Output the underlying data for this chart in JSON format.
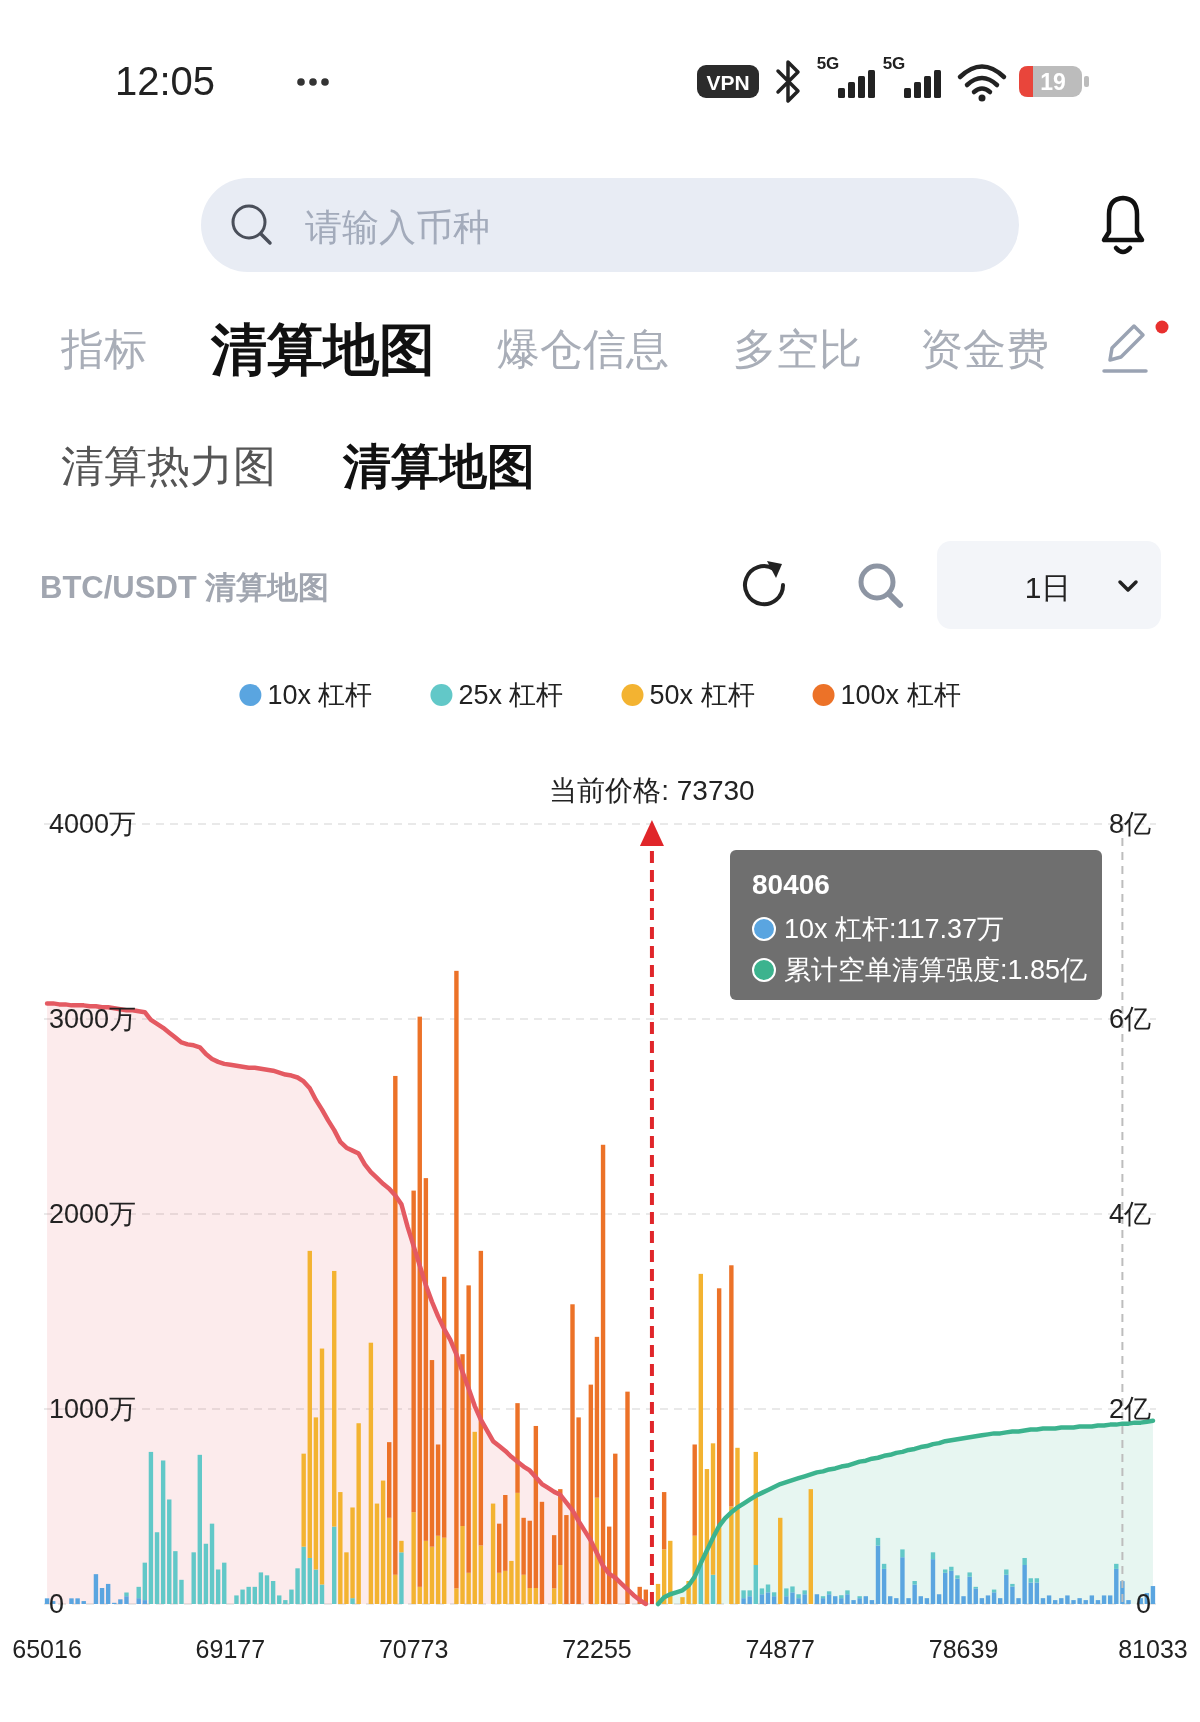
{
  "chart_data": {
    "type": "bar",
    "title": "BTC/USDT 清算地图",
    "categories": [
      "65016",
      null,
      null,
      null,
      null,
      null,
      null,
      null,
      null,
      null,
      null,
      null,
      null,
      null,
      null,
      null,
      null,
      null,
      null,
      null,
      null,
      null,
      null,
      null,
      null,
      null,
      null,
      null,
      null,
      null,
      "69177",
      null,
      null,
      null,
      null,
      null,
      null,
      null,
      null,
      null,
      null,
      null,
      null,
      null,
      null,
      null,
      null,
      null,
      null,
      null,
      null,
      null,
      null,
      null,
      null,
      null,
      null,
      null,
      null,
      null,
      "70773",
      null,
      null,
      null,
      null,
      null,
      null,
      null,
      null,
      null,
      null,
      null,
      null,
      null,
      null,
      null,
      null,
      null,
      null,
      null,
      null,
      null,
      null,
      null,
      null,
      null,
      null,
      null,
      null,
      null,
      "72255",
      null,
      null,
      null,
      null,
      null,
      null,
      null,
      null,
      null,
      null,
      null,
      null,
      null,
      null,
      null,
      null,
      null,
      null,
      null,
      null,
      null,
      null,
      null,
      null,
      null,
      null,
      null,
      null,
      null,
      "74877",
      null,
      null,
      null,
      null,
      null,
      null,
      null,
      null,
      null,
      null,
      null,
      null,
      null,
      null,
      null,
      null,
      null,
      null,
      null,
      null,
      null,
      null,
      null,
      null,
      null,
      null,
      null,
      null,
      null,
      "78639",
      null,
      null,
      null,
      null,
      null,
      null,
      null,
      null,
      null,
      null,
      null,
      null,
      null,
      null,
      null,
      null,
      null,
      null,
      null,
      null,
      null,
      null,
      null,
      null,
      null,
      null,
      null,
      null,
      null,
      null,
      "81033"
    ],
    "series": [
      {
        "name": "10x 杠杆",
        "color": "#5aa5e0",
        "values": [
          29,
          15,
          0,
          0,
          29,
          29,
          15,
          0,
          153,
          82,
          103,
          6,
          24,
          40,
          0,
          30,
          20,
          0,
          0,
          0,
          0,
          0,
          0,
          0,
          0,
          0,
          0,
          0,
          0,
          0,
          0,
          0,
          0,
          0,
          0,
          0,
          0,
          0,
          0,
          0,
          0,
          0,
          0,
          0,
          0,
          0,
          0,
          0,
          0,
          0,
          0,
          0,
          0,
          0,
          0,
          0,
          0,
          0,
          0,
          0,
          0,
          0,
          0,
          0,
          0,
          0,
          0,
          0,
          0,
          0,
          0,
          0,
          0,
          0,
          0,
          0,
          0,
          0,
          0,
          0,
          0,
          0,
          0,
          0,
          0,
          0,
          0,
          0,
          0,
          0,
          0,
          0,
          0,
          0,
          0,
          0,
          0,
          0,
          0,
          0,
          0,
          0,
          0,
          0,
          0,
          0,
          0,
          0,
          0,
          0,
          0,
          0,
          0,
          0,
          30,
          40,
          0,
          50,
          60,
          40,
          0,
          40,
          60,
          30,
          50,
          0,
          50,
          30,
          50,
          40,
          30,
          50,
          20,
          30,
          40,
          20,
          300,
          180,
          40,
          30,
          240,
          30,
          100,
          40,
          30,
          230,
          50,
          160,
          170,
          130,
          40,
          140,
          80,
          30,
          44,
          60,
          30,
          150,
          90,
          30,
          200,
          110,
          110,
          30,
          44,
          20,
          30,
          44,
          20,
          30,
          20,
          44,
          20,
          44,
          44,
          180,
          117.37,
          20,
          0,
          30,
          56,
          92
        ]
      },
      {
        "name": "25x 杠杆",
        "color": "#62c8c8",
        "values": [
          0,
          0,
          0,
          0,
          0,
          0,
          0,
          0,
          0,
          0,
          0,
          0,
          0,
          19,
          0,
          58,
          192,
          780,
          368,
          736,
          536,
          271,
          124,
          0,
          265,
          765,
          309,
          412,
          177,
          212,
          0,
          44,
          74,
          88,
          88,
          162,
          147,
          118,
          44,
          20,
          74,
          183,
          294,
          236,
          177,
          100,
          0,
          397,
          0,
          0,
          30,
          0,
          0,
          0,
          0,
          0,
          0,
          0,
          265,
          0,
          0,
          0,
          0,
          0,
          0,
          0,
          0,
          0,
          0,
          0,
          0,
          0,
          0,
          0,
          0,
          0,
          0,
          0,
          0,
          0,
          0,
          0,
          0,
          0,
          0,
          0,
          0,
          0,
          0,
          0,
          0,
          0,
          0,
          0,
          0,
          0,
          0,
          0,
          0,
          0,
          0,
          0,
          0,
          0,
          0,
          0,
          0,
          200,
          0,
          150,
          0,
          0,
          0,
          0,
          40,
          30,
          200,
          30,
          40,
          20,
          0,
          40,
          30,
          20,
          20,
          0,
          0,
          10,
          15,
          0,
          15,
          20,
          0,
          10,
          0,
          0,
          39,
          26,
          0,
          0,
          40,
          0,
          18,
          0,
          0,
          35,
          0,
          17,
          21,
          17,
          0,
          22,
          8,
          0,
          0,
          14,
          0,
          27,
          13,
          0,
          36,
          22,
          22,
          0,
          0,
          0,
          0,
          0,
          0,
          0,
          0,
          0,
          0,
          0,
          0,
          26,
          0,
          0,
          0,
          0,
          0,
          0
        ]
      },
      {
        "name": "50x 杠杆",
        "color": "#f3b331",
        "values": [
          0,
          0,
          0,
          0,
          0,
          0,
          0,
          0,
          0,
          0,
          0,
          0,
          0,
          0,
          0,
          0,
          0,
          0,
          0,
          0,
          0,
          0,
          0,
          0,
          0,
          0,
          0,
          0,
          0,
          0,
          0,
          0,
          0,
          0,
          0,
          0,
          0,
          0,
          0,
          0,
          0,
          0,
          477,
          1575,
          780,
          1210,
          0,
          1311,
          574,
          265,
          465,
          927,
          0,
          1340,
          515,
          633,
          442,
          150,
          59,
          0,
          471,
          88,
          324,
          294,
          350,
          340,
          0,
          80,
          400,
          160,
          883,
          300,
          0,
          515,
          160,
          170,
          221,
          570,
          150,
          82,
          82,
          0,
          0,
          80,
          200,
          0,
          0,
          0,
          0,
          0,
          545,
          0,
          0,
          0,
          0,
          0,
          0,
          0,
          0,
          0,
          103,
          280,
          324,
          0,
          35,
          118,
          350,
          1493,
          692,
          674,
          400,
          0,
          500,
          801,
          0,
          0,
          580,
          0,
          0,
          0,
          442,
          0,
          0,
          0,
          0,
          589,
          0,
          0,
          0,
          0,
          0,
          0,
          0,
          0,
          0,
          0,
          0,
          0,
          0,
          0,
          0,
          0,
          0,
          0,
          0,
          0,
          0,
          0,
          0,
          0,
          0,
          0,
          0,
          0,
          0,
          0,
          0,
          0,
          0,
          0,
          0,
          0,
          0,
          0,
          0,
          0,
          0,
          0,
          0,
          0,
          0,
          0,
          0,
          0,
          0,
          0,
          0,
          0,
          0,
          0,
          0,
          0
        ]
      },
      {
        "name": "100x 杠杆",
        "color": "#ec7228",
        "values": [
          0,
          0,
          0,
          0,
          0,
          0,
          0,
          0,
          0,
          0,
          0,
          0,
          0,
          0,
          0,
          0,
          0,
          0,
          0,
          0,
          0,
          0,
          0,
          0,
          0,
          0,
          0,
          0,
          0,
          0,
          0,
          0,
          0,
          0,
          0,
          0,
          0,
          0,
          0,
          0,
          0,
          0,
          0,
          0,
          0,
          0,
          0,
          0,
          0,
          0,
          0,
          0,
          0,
          0,
          0,
          0,
          388,
          2558,
          0,
          0,
          1649,
          2924,
          1860,
          957,
          468,
          1338,
          0,
          3167,
          881,
          1474,
          0,
          1511,
          0,
          0,
          252,
          389,
          0,
          460,
          292,
          345,
          831,
          524,
          0,
          273,
          389,
          456,
          1537,
          957,
          0,
          1125,
          825,
          2355,
          397,
          771,
          0,
          1089,
          0,
          88,
          74,
          0,
          0,
          294,
          0,
          0,
          0,
          0,
          468,
          0,
          0,
          0,
          1219,
          0,
          1237,
          0,
          0,
          0,
          0,
          0,
          0,
          0,
          0,
          0,
          0,
          0,
          0,
          0,
          0,
          0,
          0,
          0,
          0,
          0,
          0,
          0,
          0,
          0,
          0,
          0,
          0,
          0,
          0,
          0,
          0,
          0,
          0,
          0,
          0,
          0,
          0,
          0,
          0,
          0,
          0,
          0,
          0,
          0,
          0,
          0,
          0,
          0,
          0,
          0,
          0,
          0,
          0,
          0,
          0,
          0,
          0,
          0,
          0,
          0,
          0,
          0,
          0,
          0,
          0,
          0,
          0,
          0,
          0,
          0
        ]
      },
      {
        "type": "area",
        "axis": "y2",
        "color": "#e45a62",
        "values": [
          6.16,
          6.16,
          6.15,
          6.15,
          6.14,
          6.14,
          6.14,
          6.13,
          6.13,
          6.12,
          6.12,
          6.11,
          6.1,
          6.09,
          6.09,
          6.08,
          6.07,
          5.99,
          5.95,
          5.91,
          5.86,
          5.81,
          5.76,
          5.74,
          5.73,
          5.71,
          5.64,
          5.59,
          5.56,
          5.54,
          5.53,
          5.52,
          5.51,
          5.5,
          5.5,
          5.49,
          5.48,
          5.47,
          5.45,
          5.43,
          5.42,
          5.4,
          5.36,
          5.29,
          5.17,
          5.07,
          4.96,
          4.86,
          4.74,
          4.68,
          4.65,
          4.62,
          4.51,
          4.43,
          4.37,
          4.31,
          4.26,
          4.19,
          4.1,
          3.87,
          3.67,
          3.47,
          3.27,
          3.1,
          2.95,
          2.82,
          2.71,
          2.56,
          2.38,
          2.21,
          2.03,
          1.89,
          1.78,
          1.67,
          1.62,
          1.57,
          1.51,
          1.46,
          1.41,
          1.37,
          1.3,
          1.23,
          1.19,
          1.15,
          1.12,
          1.04,
          0.96,
          0.85,
          0.75,
          0.65,
          0.52,
          0.39,
          0.31,
          0.27,
          0.21,
          0.15,
          0.09,
          0.04,
          0,
          null,
          null,
          null,
          null,
          null,
          null,
          null,
          null,
          null,
          null,
          null,
          null,
          null,
          null,
          null,
          null,
          null,
          null,
          null,
          null,
          null,
          null,
          null,
          null,
          null,
          null,
          null,
          null,
          null,
          null,
          null,
          null,
          null,
          null,
          null,
          null,
          null,
          null,
          null,
          null,
          null,
          null,
          null,
          null,
          null,
          null,
          null,
          null,
          null,
          null,
          null,
          null,
          null,
          null,
          null,
          null,
          null,
          null,
          null,
          null,
          null,
          null,
          null,
          null,
          null,
          null,
          null,
          null,
          null,
          null,
          null,
          null,
          null,
          null,
          null,
          null,
          null,
          null,
          null,
          null,
          null,
          null,
          null
        ]
      },
      {
        "type": "area",
        "axis": "y2",
        "color": "#3cb38e",
        "values": [
          null,
          null,
          null,
          null,
          null,
          null,
          null,
          null,
          null,
          null,
          null,
          null,
          null,
          null,
          null,
          null,
          null,
          null,
          null,
          null,
          null,
          null,
          null,
          null,
          null,
          null,
          null,
          null,
          null,
          null,
          null,
          null,
          null,
          null,
          null,
          null,
          null,
          null,
          null,
          null,
          null,
          null,
          null,
          null,
          null,
          null,
          null,
          null,
          null,
          null,
          null,
          null,
          null,
          null,
          null,
          null,
          null,
          null,
          null,
          null,
          null,
          null,
          null,
          null,
          null,
          null,
          null,
          null,
          null,
          null,
          null,
          null,
          null,
          null,
          null,
          null,
          null,
          null,
          null,
          null,
          null,
          null,
          null,
          null,
          null,
          null,
          null,
          null,
          null,
          null,
          null,
          null,
          null,
          null,
          null,
          null,
          null,
          null,
          null,
          null,
          0,
          0.07,
          0.1,
          0.12,
          0.14,
          0.19,
          0.28,
          0.42,
          0.55,
          0.68,
          0.8,
          0.88,
          0.94,
          0.99,
          1.03,
          1.07,
          1.11,
          1.14,
          1.17,
          1.2,
          1.23,
          1.25,
          1.27,
          1.29,
          1.31,
          1.33,
          1.35,
          1.36,
          1.38,
          1.39,
          1.41,
          1.42,
          1.44,
          1.46,
          1.47,
          1.49,
          1.5,
          1.52,
          1.53,
          1.55,
          1.56,
          1.58,
          1.59,
          1.61,
          1.62,
          1.64,
          1.65,
          1.67,
          1.68,
          1.69,
          1.7,
          1.71,
          1.72,
          1.73,
          1.74,
          1.75,
          1.75,
          1.76,
          1.77,
          1.77,
          1.78,
          1.79,
          1.79,
          1.8,
          1.8,
          1.8,
          1.81,
          1.81,
          1.81,
          1.82,
          1.82,
          1.82,
          1.83,
          1.83,
          1.84,
          1.84,
          1.85,
          1.85,
          1.86,
          1.86,
          1.87,
          1.88
        ]
      }
    ],
    "stacked": true,
    "ylim": [
      0,
      4000
    ],
    "yticks": [
      0,
      {
        "value": 1000,
        "label": "1000万"
      },
      {
        "value": 2000,
        "label": "2000万"
      },
      {
        "value": 3000,
        "label": "3000万"
      },
      {
        "value": 4000,
        "label": "4000万"
      }
    ],
    "y2lim": [
      0,
      8
    ],
    "y2ticks": [
      0,
      {
        "value": 2,
        "label": "2亿"
      },
      {
        "value": 4,
        "label": "4亿"
      },
      {
        "value": 6,
        "label": "6亿"
      },
      {
        "value": 8,
        "label": "8亿"
      }
    ],
    "grid": "y",
    "legend": "top",
    "annotations": [
      "12:05",
      "VPN",
      "5G",
      "5G",
      "19",
      "请输入币种",
      "指标",
      "清算地图",
      "爆仓信息",
      "多空比",
      "资金费",
      "清算热力图",
      "清算地图",
      "1日",
      "当前价格: 73730",
      "80406",
      "10x 杠杆:117.37万",
      "累计空单清算强度:1.85亿"
    ]
  }
}
